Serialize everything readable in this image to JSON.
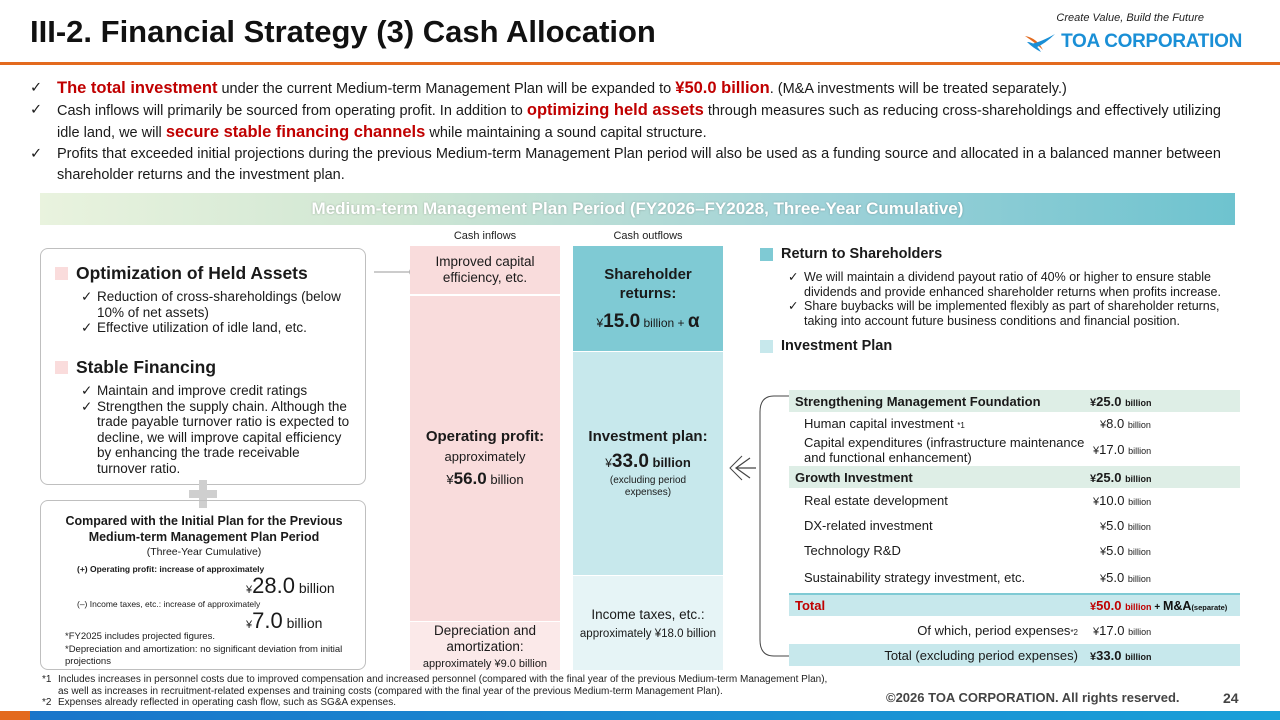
{
  "header": {
    "title": "III-2. Financial Strategy (3) Cash Allocation",
    "tagline": "Create Value, Build the Future",
    "logo_text": "TOA CORPORATION"
  },
  "bullets": {
    "check": "✓",
    "b1": {
      "hl1": "The total investment",
      "t1": " under the current Medium-term Management Plan will be expanded to ",
      "hl2": "¥50.0 billion",
      "t2": ". (M&A investments will be treated separately.)"
    },
    "b2": {
      "t1": "Cash inflows will primarily be sourced from operating profit. In addition to ",
      "hl1": "optimizing held assets",
      "t2": " through measures such as reducing cross-shareholdings and effectively utilizing idle land, we will ",
      "hl2": "secure stable financing channels",
      "t3": " while maintaining a sound capital structure."
    },
    "b3": {
      "t1": "Profits that exceeded initial projections during the previous Medium-term Management Plan period will also be used as a funding source and allocated in a balanced manner between shareholder returns and the investment plan."
    }
  },
  "banner": "Medium-term Management Plan Period (FY2026–FY2028, Three-Year Cumulative)",
  "columns": {
    "inflows": "Cash inflows",
    "outflows": "Cash outflows"
  },
  "held_assets": {
    "title1": "Optimization of Held Assets",
    "items1": [
      "Reduction of cross-shareholdings (below 10% of net assets)",
      "Effective utilization of idle land, etc."
    ],
    "title2": "Stable Financing",
    "items2": [
      "Maintain and improve credit ratings",
      "Strengthen the supply chain. Although the trade payable turnover ratio is expected to decline, we will improve capital efficiency by enhancing the trade receivable turnover ratio."
    ]
  },
  "comparison": {
    "title": "Compared with the Initial Plan for the Previous Medium-term Management Plan Period",
    "subtitle": "(Three-Year Cumulative)",
    "op_label": "(+) Operating profit: increase of approximately",
    "op_value": "28.0",
    "tax_label": "(–) Income taxes, etc.: increase of approximately",
    "tax_value": "7.0",
    "yen": "¥",
    "billion": "billion",
    "note1": "*FY2025 includes projected figures.",
    "note2": "*Depreciation and amortization: no significant deviation from initial projections"
  },
  "inflows": {
    "capital_eff": "Improved capital efficiency, etc.",
    "op_title": "Operating profit:",
    "op_approx": "approximately",
    "op_yen": "¥",
    "op_value": "56.0",
    "op_unit": " billion",
    "dep_title": "Depreciation and amortization:",
    "dep_amount": "approximately ¥9.0 billion"
  },
  "outflows": {
    "sh_title": "Shareholder returns:",
    "sh_yen": "¥",
    "sh_value": "15.0",
    "sh_unit": " billion + ",
    "sh_alpha": "α",
    "inv_title": "Investment plan:",
    "inv_yen": "¥",
    "inv_value": "33.0",
    "inv_unit": " billion",
    "inv_note": "(excluding period expenses)",
    "tax_title": "Income taxes, etc.:",
    "tax_amount": "approximately ¥18.0 billion"
  },
  "returns": {
    "title": "Return to Shareholders",
    "items": [
      "We will maintain a dividend payout ratio of 40% or higher to ensure stable dividends and provide enhanced shareholder returns when profits increase.",
      "Share buybacks will be implemented flexibly as part of shareholder returns, taking into account future business conditions and financial position."
    ]
  },
  "investment": {
    "title": "Investment Plan",
    "billion": "billion",
    "yen": "¥",
    "rows": {
      "sf_label": "Strengthening Management Foundation",
      "sf_val": "25.0",
      "hc_label": "Human capital investment",
      "hc_mark": "*1",
      "hc_val": "8.0",
      "capex_label": "Capital expenditures (infrastructure maintenance and functional enhancement)",
      "capex_val": "17.0",
      "gi_label": "Growth Investment",
      "gi_val": "25.0",
      "re_label": "Real estate development",
      "re_val": "10.0",
      "dx_label": "DX-related investment",
      "dx_val": "5.0",
      "rd_label": "Technology R&D",
      "rd_val": "5.0",
      "sus_label": "Sustainability strategy investment, etc.",
      "sus_val": "5.0",
      "total_label": "Total",
      "total_val": "50.0",
      "total_plus": " + ",
      "total_ma": "M&A",
      "total_sep": "(separate)",
      "pe_label": "Of which, period expenses",
      "pe_mark": "*2",
      "pe_val": "17.0",
      "tex_label": "Total (excluding period expenses)",
      "tex_val": "33.0"
    }
  },
  "footnotes": {
    "f1_mark": "*1",
    "f1": "Includes increases in personnel costs due to improved compensation and increased personnel (compared with the final year of the previous Medium-term Management Plan),",
    "f1b": "as well as increases in recruitment-related expenses and training costs (compared with the final year of the previous Medium-term Management Plan).",
    "f2_mark": "*2",
    "f2": "Expenses already reflected in operating cash flow, such as SG&A expenses."
  },
  "copyright": "©2026 TOA CORPORATION. All rights reserved.",
  "page_number": "24",
  "colors": {
    "accent_red": "#c00000",
    "orange_rule": "#e36a1e",
    "logo_blue": "#1a8fd6",
    "inflow_pink": "#f9dcdc",
    "shareholder_teal": "#7fcad4",
    "investment_teal": "#c7e8ec",
    "tax_teal": "#e6f4f6",
    "table_green": "#deeee6"
  }
}
